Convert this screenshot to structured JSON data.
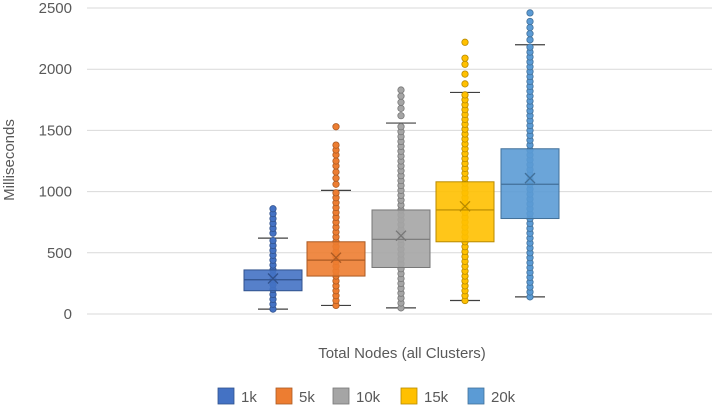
{
  "chart_data": {
    "type": "box",
    "title": "",
    "xlabel": "Total Nodes (all Clusters)",
    "ylabel": "Milliseconds",
    "ylim": [
      0,
      2500
    ],
    "yticks": [
      "0",
      "500",
      "1000",
      "1500",
      "2000",
      "2500"
    ],
    "grid": true,
    "legend_position": "bottom",
    "series": [
      {
        "name": "1k",
        "color": "#4472C4",
        "min": 40,
        "q1": 190,
        "median": 280,
        "q3": 360,
        "max": 620,
        "mean": 290,
        "outliers": [
          660,
          700,
          740,
          780,
          820,
          860
        ]
      },
      {
        "name": "5k",
        "color": "#ED7D31",
        "min": 70,
        "q1": 310,
        "median": 440,
        "q3": 590,
        "max": 1010,
        "mean": 460,
        "outliers": [
          1060,
          1110,
          1160,
          1210,
          1250,
          1300,
          1340,
          1380,
          1530
        ]
      },
      {
        "name": "10k",
        "color": "#A5A5A5",
        "min": 50,
        "q1": 380,
        "median": 610,
        "q3": 850,
        "max": 1560,
        "mean": 640,
        "outliers": [
          1620,
          1680,
          1730,
          1780,
          1830
        ]
      },
      {
        "name": "15k",
        "color": "#FFC000",
        "min": 110,
        "q1": 590,
        "median": 850,
        "q3": 1080,
        "max": 1810,
        "mean": 880,
        "outliers": [
          1880,
          1960,
          2040,
          2090,
          2220
        ]
      },
      {
        "name": "20k",
        "color": "#5B9BD5",
        "min": 140,
        "q1": 780,
        "median": 1060,
        "q3": 1350,
        "max": 2200,
        "mean": 1110,
        "outliers": [
          2240,
          2290,
          2340,
          2390,
          2460
        ]
      }
    ]
  }
}
